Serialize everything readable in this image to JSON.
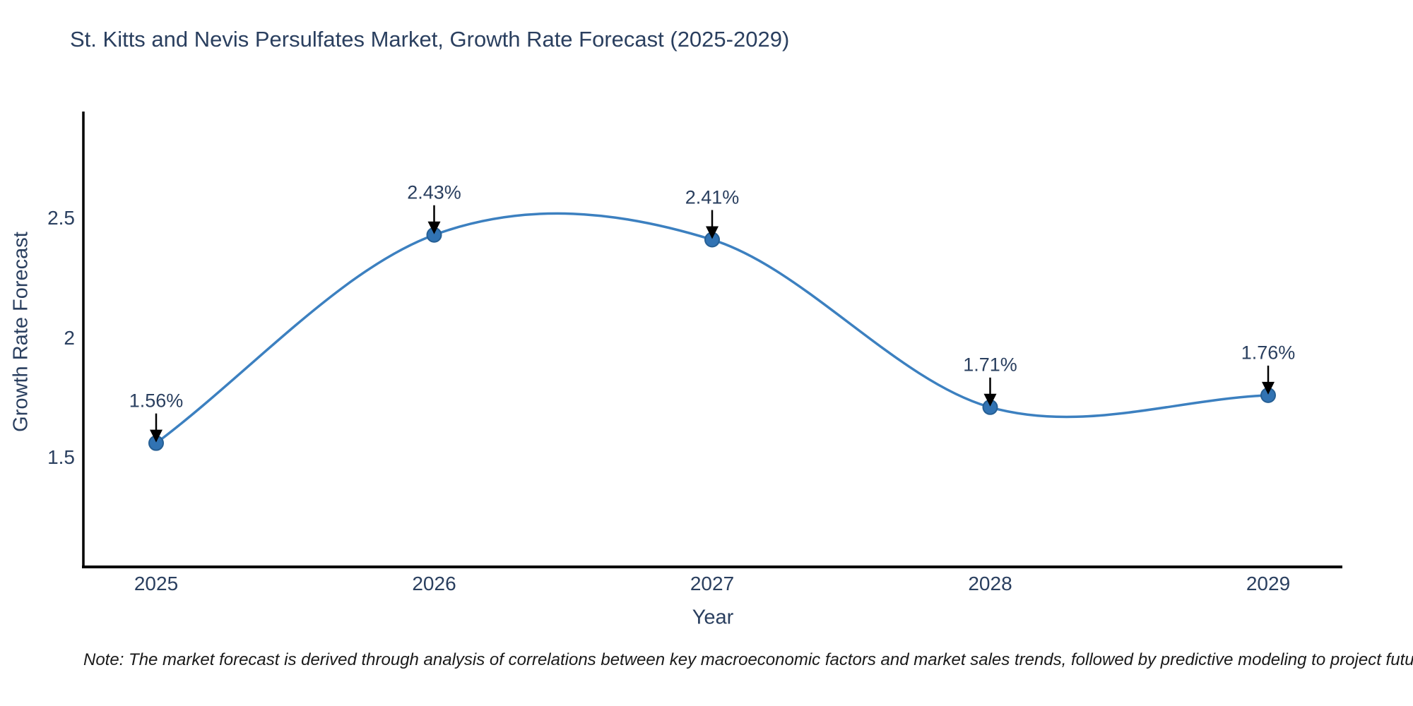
{
  "page": {
    "background": "#ffffff"
  },
  "chart_data": {
    "type": "line",
    "title": "St. Kitts and Nevis Persulfates Market, Growth Rate Forecast (2025-2029)",
    "xlabel": "Year",
    "ylabel": "Growth Rate Forecast",
    "x": [
      2025,
      2026,
      2027,
      2028,
      2029
    ],
    "series": [
      {
        "name": "Growth Rate Forecast",
        "values": [
          1.56,
          2.43,
          2.41,
          1.71,
          1.76
        ]
      }
    ],
    "point_labels": [
      "1.56%",
      "2.43%",
      "2.41%",
      "1.71%",
      "1.76%"
    ],
    "xtick_labels": [
      "2025",
      "2026",
      "2027",
      "2028",
      "2029"
    ],
    "ytick_values": [
      1.5,
      2.0,
      2.5
    ],
    "ytick_labels": [
      "1.5",
      "2",
      "2.5"
    ],
    "xlim": [
      2024.74,
      2029.27
    ],
    "ylim": [
      1.05,
      2.95
    ],
    "line_shape": "spline",
    "grid": false,
    "legend_position": "none",
    "colors": {
      "line": "#3c80c0",
      "marker_fill": "#3173b3",
      "marker_edge": "#265f94",
      "annotation_arrow": "#000000",
      "axis": "#000000",
      "text": "#2a3f5f"
    }
  },
  "note": "Note: The market forecast is derived through analysis of correlations between key macroeconomic factors and market sales trends, followed by predictive modeling to project future sales"
}
